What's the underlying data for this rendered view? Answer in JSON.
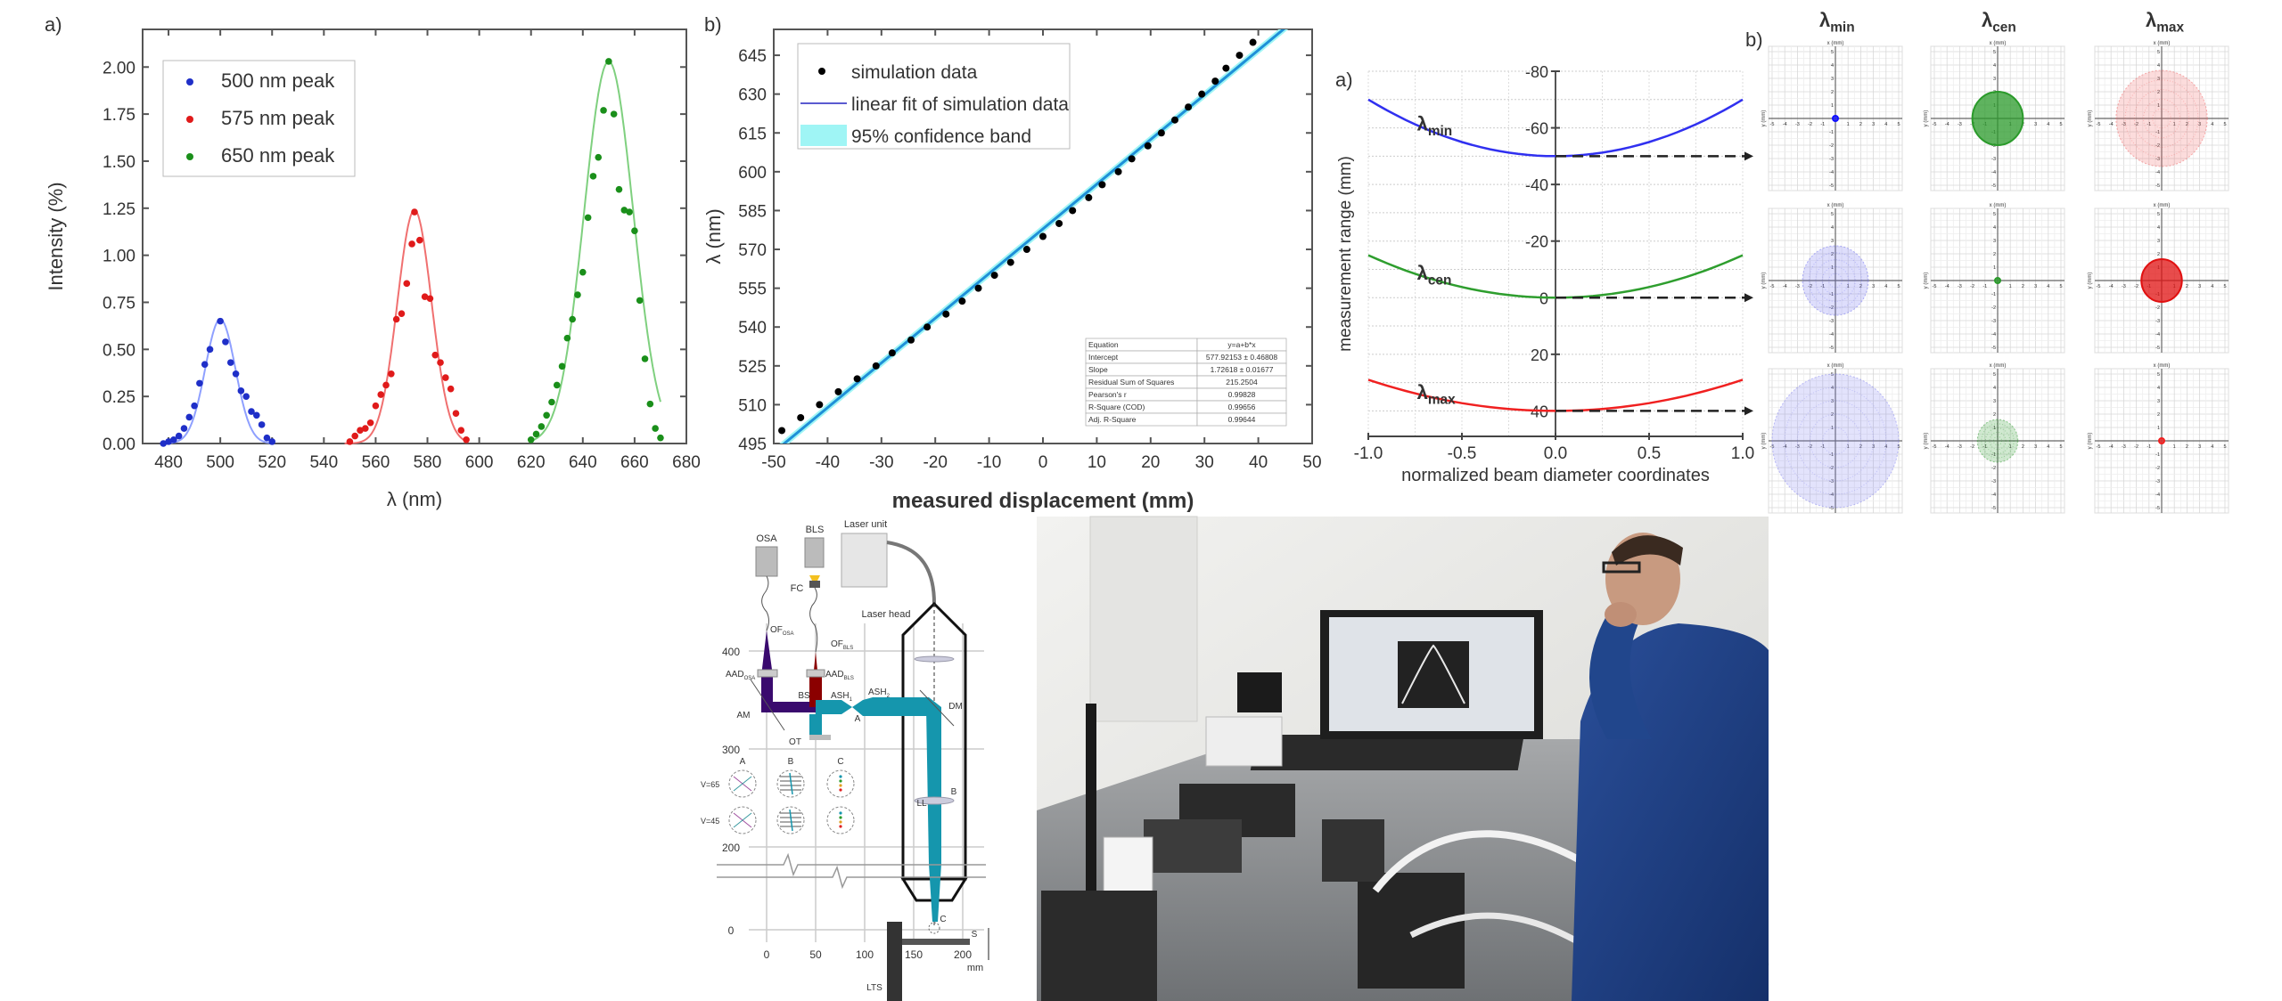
{
  "chart_data": [
    {
      "type": "scatter",
      "panel_label": "a)",
      "xlabel": "λ (nm)",
      "ylabel": "Intensity (%)",
      "xlim": [
        470,
        680
      ],
      "ylim": [
        0,
        2.2
      ],
      "xticks": [
        "480",
        "500",
        "520",
        "540",
        "560",
        "580",
        "600",
        "620",
        "640",
        "660",
        "680"
      ],
      "yticks": [
        "0.00",
        "0.25",
        "0.50",
        "0.75",
        "1.00",
        "1.25",
        "1.50",
        "1.75",
        "2.00"
      ],
      "legend_position": "top-left",
      "series": [
        {
          "name": "500 nm peak",
          "color": "#1f2fc8",
          "fit_color": "#8fa0ff",
          "points": [
            [
              478,
              0
            ],
            [
              480,
              0.01
            ],
            [
              482,
              0.02
            ],
            [
              484,
              0.04
            ],
            [
              486,
              0.08
            ],
            [
              488,
              0.14
            ],
            [
              490,
              0.2
            ],
            [
              492,
              0.32
            ],
            [
              494,
              0.42
            ],
            [
              496,
              0.5
            ],
            [
              500,
              0.65
            ],
            [
              502,
              0.54
            ],
            [
              504,
              0.43
            ],
            [
              506,
              0.37
            ],
            [
              508,
              0.28
            ],
            [
              510,
              0.25
            ],
            [
              512,
              0.17
            ],
            [
              514,
              0.15
            ],
            [
              516,
              0.1
            ],
            [
              518,
              0.03
            ],
            [
              520,
              0.01
            ]
          ],
          "fit": {
            "center": 500,
            "amplitude": 0.66,
            "sigma": 5.8,
            "range": [
              478,
              520
            ]
          }
        },
        {
          "name": "575 nm peak",
          "color": "#e01a1a",
          "fit_color": "#f07070",
          "points": [
            [
              550,
              0.01
            ],
            [
              552,
              0.04
            ],
            [
              554,
              0.07
            ],
            [
              556,
              0.08
            ],
            [
              558,
              0.11
            ],
            [
              560,
              0.2
            ],
            [
              562,
              0.26
            ],
            [
              564,
              0.31
            ],
            [
              566,
              0.37
            ],
            [
              568,
              0.66
            ],
            [
              570,
              0.69
            ],
            [
              572,
              0.85
            ],
            [
              574,
              1.06
            ],
            [
              575,
              1.23
            ],
            [
              577,
              1.08
            ],
            [
              579,
              0.78
            ],
            [
              581,
              0.77
            ],
            [
              583,
              0.47
            ],
            [
              585,
              0.43
            ],
            [
              587,
              0.35
            ],
            [
              589,
              0.29
            ],
            [
              591,
              0.16
            ],
            [
              593,
              0.07
            ],
            [
              595,
              0.02
            ]
          ],
          "fit": {
            "center": 575,
            "amplitude": 1.24,
            "sigma": 6.6,
            "range": [
              548,
              595
            ]
          }
        },
        {
          "name": "650 nm peak",
          "color": "#1a8f1a",
          "fit_color": "#7fd07f",
          "points": [
            [
              620,
              0.02
            ],
            [
              622,
              0.05
            ],
            [
              624,
              0.09
            ],
            [
              626,
              0.15
            ],
            [
              628,
              0.22
            ],
            [
              630,
              0.31
            ],
            [
              632,
              0.41
            ],
            [
              634,
              0.56
            ],
            [
              636,
              0.66
            ],
            [
              638,
              0.79
            ],
            [
              640,
              0.91
            ],
            [
              642,
              1.2
            ],
            [
              644,
              1.42
            ],
            [
              646,
              1.52
            ],
            [
              648,
              1.77
            ],
            [
              650,
              2.03
            ],
            [
              652,
              1.75
            ],
            [
              654,
              1.35
            ],
            [
              656,
              1.24
            ],
            [
              658,
              1.23
            ],
            [
              660,
              1.13
            ],
            [
              662,
              0.76
            ],
            [
              664,
              0.45
            ],
            [
              666,
              0.21
            ],
            [
              668,
              0.08
            ],
            [
              670,
              0.03
            ]
          ],
          "fit": {
            "center": 650,
            "amplitude": 2.03,
            "sigma": 9.5,
            "range": [
              620,
              670
            ]
          }
        }
      ]
    },
    {
      "type": "scatter",
      "panel_label": "b)",
      "xlabel": "measured displacement (mm)",
      "ylabel": "λ (nm)",
      "xlim": [
        -50,
        50
      ],
      "ylim": [
        495,
        655
      ],
      "xticks": [
        "-50",
        "-40",
        "-30",
        "-20",
        "-10",
        "0",
        "10",
        "20",
        "30",
        "40",
        "50"
      ],
      "yticks": [
        "495",
        "510",
        "525",
        "540",
        "555",
        "570",
        "585",
        "600",
        "615",
        "630",
        "645"
      ],
      "legend_position": "top-left",
      "series": [
        {
          "name": "simulation data",
          "color": "#000000",
          "points": [
            [
              -48.5,
              500
            ],
            [
              -45,
              505
            ],
            [
              -41.5,
              510
            ],
            [
              -38,
              515
            ],
            [
              -34.5,
              520
            ],
            [
              -31,
              525
            ],
            [
              -28,
              530
            ],
            [
              -24.5,
              535
            ],
            [
              -21.5,
              540
            ],
            [
              -18,
              545
            ],
            [
              -15,
              550
            ],
            [
              -12,
              555
            ],
            [
              -9,
              560
            ],
            [
              -6,
              565
            ],
            [
              -3,
              570
            ],
            [
              0,
              575
            ],
            [
              3,
              580
            ],
            [
              5.5,
              585
            ],
            [
              8.5,
              590
            ],
            [
              11,
              595
            ],
            [
              14,
              600
            ],
            [
              16.5,
              605
            ],
            [
              19.5,
              610
            ],
            [
              22,
              615
            ],
            [
              24.5,
              620
            ],
            [
              27,
              625
            ],
            [
              29.5,
              630
            ],
            [
              32,
              635
            ],
            [
              34,
              640
            ],
            [
              36.5,
              645
            ],
            [
              39,
              650
            ]
          ]
        }
      ],
      "fit": {
        "name": "linear fit of simulation data",
        "color": "#5a5ad0",
        "intercept": 577.92153,
        "slope": 1.72618
      },
      "band": {
        "name": "95% confidence band",
        "color": "#9ff5f5",
        "line_color": "#1e90d8"
      },
      "stats_table": [
        [
          "Equation",
          "y=a+b*x"
        ],
        [
          "Intercept",
          "577.92153 ± 0.46808"
        ],
        [
          "Slope",
          "1.72618 ± 0.01677"
        ],
        [
          "Residual Sum of Squares",
          "215.2504"
        ],
        [
          "Pearson's r",
          "0.99828"
        ],
        [
          "R-Square (COD)",
          "0.99656"
        ],
        [
          "Adj. R-Square",
          "0.99644"
        ]
      ]
    },
    {
      "type": "line",
      "panel_label": "a)",
      "xlabel": "normalized beam diameter coordinates",
      "ylabel": "measurement range (mm)",
      "xlim": [
        -1,
        1
      ],
      "ylim": [
        -80,
        49
      ],
      "xticks": [
        "-1.0",
        "-0.5",
        "0.0",
        "0.5",
        "1.0"
      ],
      "yticks": [
        "-80",
        "-60",
        "-40",
        "-20",
        "0",
        "20",
        "40"
      ],
      "grid": true,
      "series": [
        {
          "name_main": "λ",
          "name_sub": "min",
          "color": "#3030f0",
          "vertex": -50,
          "edge_value": -70
        },
        {
          "name_main": "λ",
          "name_sub": "cen",
          "color": "#2e9e2e",
          "vertex": 0,
          "edge_value": -15
        },
        {
          "name_main": "λ",
          "name_sub": "max",
          "color": "#f02020",
          "vertex": 40,
          "edge_value": 29
        }
      ]
    },
    {
      "type": "scatter",
      "panel_label": "b)",
      "columns": [
        {
          "main": "λ",
          "sub": "min"
        },
        {
          "main": "λ",
          "sub": "cen"
        },
        {
          "main": "λ",
          "sub": "max"
        }
      ],
      "axis_range": [
        -5,
        5
      ],
      "xaxis_label": "x (mm)",
      "yaxis_label": "y (mm)",
      "axis_ticks": [
        "-5",
        "-4",
        "-3",
        "-2",
        "-1",
        "0",
        "1",
        "2",
        "3",
        "4",
        "5"
      ],
      "rows": [
        [
          {
            "radius_mm": 0.2,
            "color": "#1010ff",
            "solid": true
          },
          {
            "radius_mm": 2.0,
            "color": "#2a9a2a",
            "solid": true
          },
          {
            "radius_mm": 3.6,
            "color": "#f06060",
            "solid": false
          }
        ],
        [
          {
            "radius_mm": 2.6,
            "color": "#6a6af0",
            "solid": false
          },
          {
            "radius_mm": 0.12,
            "color": "#2a9a2a",
            "solid": true
          },
          {
            "radius_mm": 1.6,
            "color": "#e01010",
            "solid": true
          }
        ],
        [
          {
            "radius_mm": 5.0,
            "color": "#8080f0",
            "solid": false
          },
          {
            "radius_mm": 1.6,
            "color": "#2a9a2a",
            "solid": false
          },
          {
            "radius_mm": 0.12,
            "color": "#f02020",
            "solid": true
          }
        ]
      ]
    }
  ],
  "diagram": {
    "osa": "OSA",
    "bls": "BLS",
    "laser_unit": "Laser unit",
    "fc": "FC",
    "laser_head": "Laser head",
    "of_osa": {
      "main": "OF",
      "sub": "OSA"
    },
    "of_bls": {
      "main": "OF",
      "sub": "BLS"
    },
    "aad_osa": {
      "main": "AAD",
      "sub": "OSA"
    },
    "aad_bls": {
      "main": "AAD",
      "sub": "BLS"
    },
    "ash1": {
      "main": "ASH",
      "sub": "1"
    },
    "ash2": {
      "main": "ASH",
      "sub": "2"
    },
    "am": "AM",
    "bs": "BS",
    "dm": "DM",
    "ot": "OT",
    "focus_a": "A",
    "focus_b": "B",
    "focus_c": "C",
    "ll": "LL",
    "s": "S",
    "lts": "LTS",
    "inset_cols": [
      "A",
      "B",
      "C"
    ],
    "inset_rows": [
      "V=65",
      "V=45"
    ],
    "y_ticks": [
      "400",
      "300",
      "200",
      "0"
    ],
    "x_ticks": [
      "0",
      "50",
      "100",
      "150",
      "200"
    ],
    "x_unit": "mm"
  }
}
